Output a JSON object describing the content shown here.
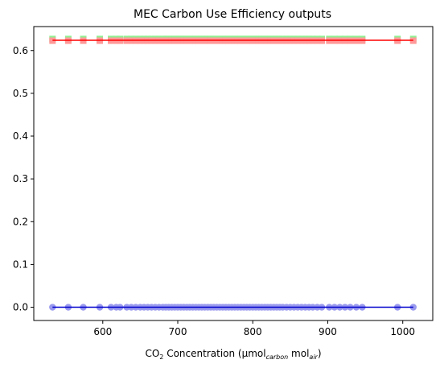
{
  "chart_data": {
    "type": "scatter",
    "title": "MEC Carbon Use Efficiency outputs",
    "xlabel": {
      "prefix": "CO",
      "sub1": "2",
      "middle": " Concentration (μmol",
      "sub2": "carbon",
      "middle2": " mol",
      "sub3": "air",
      "suffix": ")"
    },
    "ylabel": "",
    "xlim": [
      508,
      1040
    ],
    "ylim": [
      -0.031,
      0.656
    ],
    "xticks": [
      600,
      700,
      800,
      900,
      1000
    ],
    "yticks": [
      0.0,
      0.1,
      0.2,
      0.3,
      0.4,
      0.5,
      0.6
    ],
    "ytick_labels": [
      "0.0",
      "0.1",
      "0.2",
      "0.3",
      "0.4",
      "0.5",
      "0.6"
    ],
    "grid": false,
    "legend": "none",
    "x_points": [
      533,
      554,
      574,
      596,
      611,
      618,
      623,
      632,
      638,
      644,
      650,
      655,
      660,
      665,
      670,
      675,
      680,
      684,
      688,
      692,
      696,
      700,
      704,
      708,
      712,
      716,
      720,
      724,
      728,
      732,
      736,
      740,
      744,
      748,
      752,
      756,
      760,
      764,
      768,
      772,
      776,
      780,
      784,
      788,
      792,
      796,
      800,
      804,
      808,
      812,
      816,
      820,
      824,
      828,
      832,
      836,
      840,
      845,
      850,
      855,
      860,
      865,
      870,
      875,
      880,
      886,
      892,
      902,
      909,
      916,
      923,
      930,
      938,
      946,
      993,
      1014
    ],
    "series": [
      {
        "name": "",
        "marker": "square",
        "color": "#90ee90",
        "y": 0.627
      },
      {
        "name": "",
        "marker": "square",
        "color": "#ff9999",
        "y": 0.623
      },
      {
        "name": "",
        "marker": "circle",
        "color": "#9999ee",
        "y": 0.0
      }
    ],
    "lines": [
      {
        "color": "#ff0000",
        "x": [
          533,
          1014
        ],
        "y": [
          0.624,
          0.624
        ]
      },
      {
        "color": "#0000cd",
        "x": [
          533,
          1014
        ],
        "y": [
          0.0,
          0.0
        ]
      }
    ]
  }
}
